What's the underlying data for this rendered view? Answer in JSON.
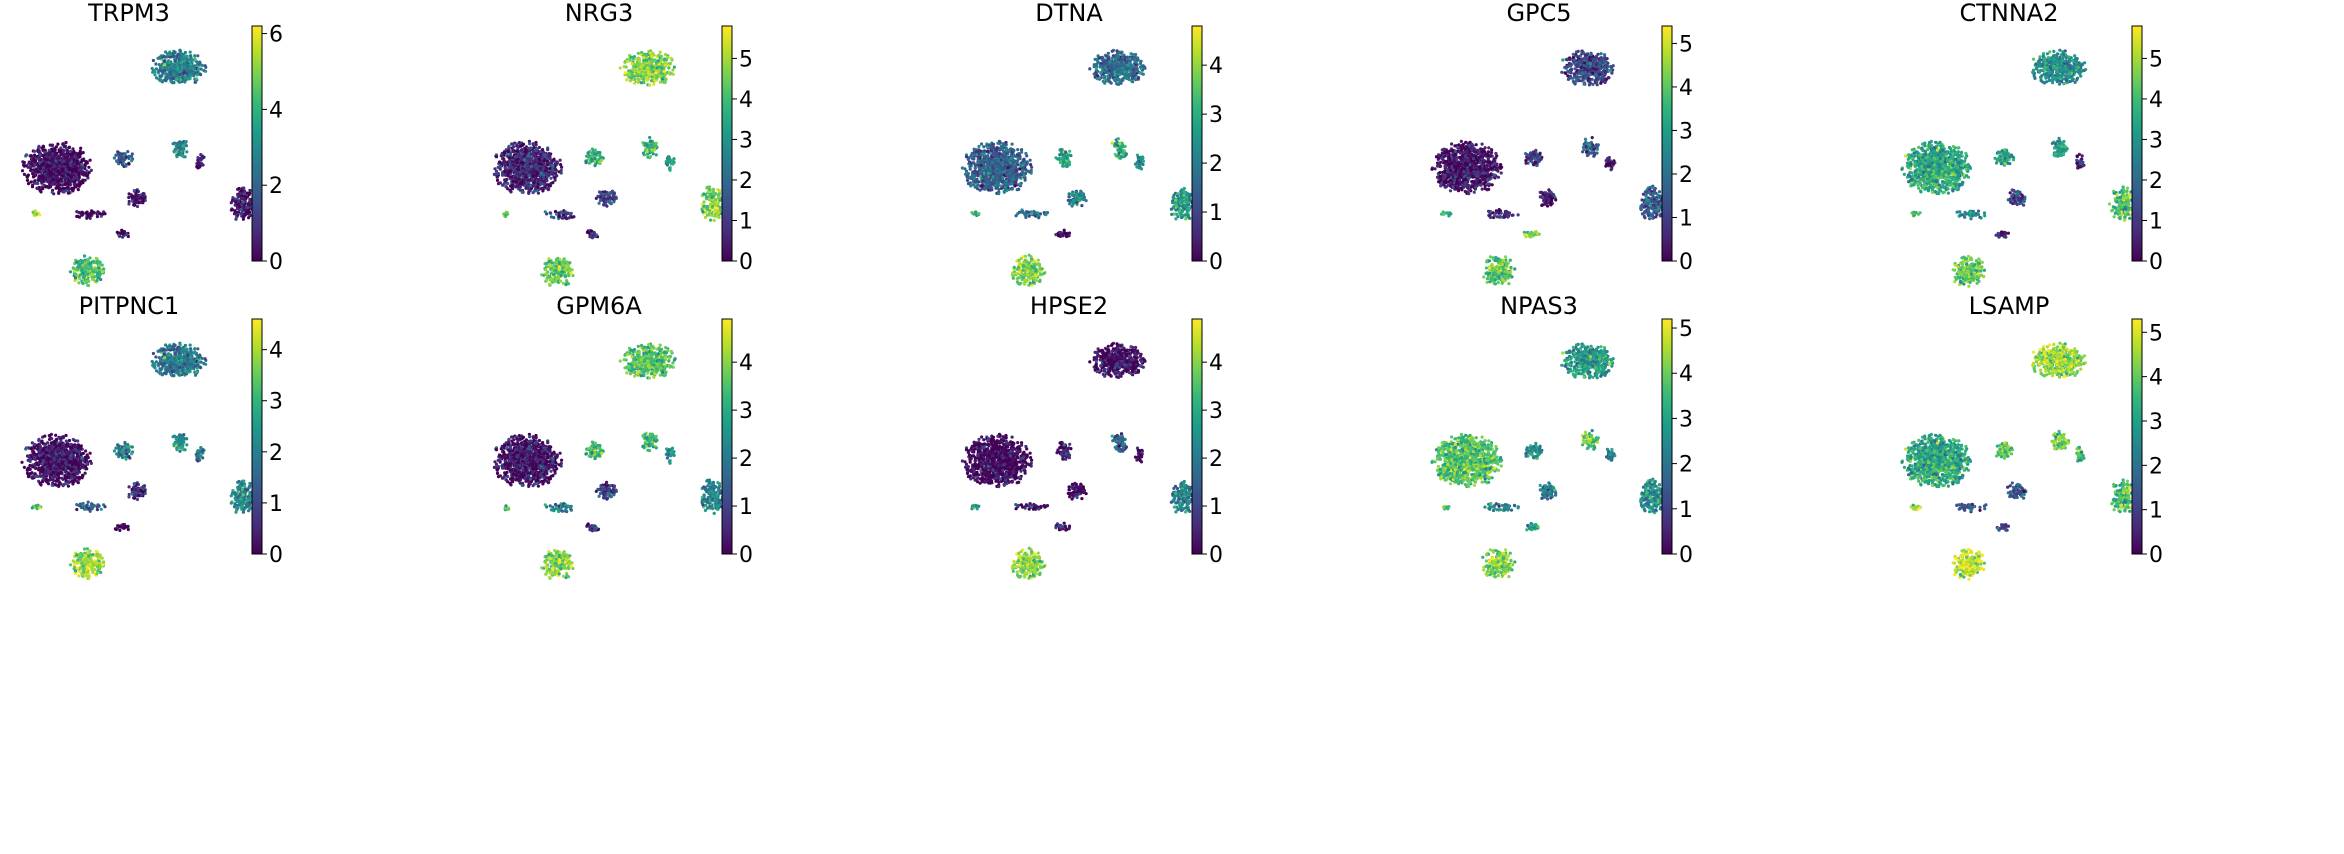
{
  "figure": {
    "type": "umap-feature-plot",
    "colormap": "viridis",
    "colormap_stops": [
      "#440154",
      "#482878",
      "#3e4989",
      "#31688e",
      "#26828e",
      "#1f9e89",
      "#35b779",
      "#6ece58",
      "#b5de2b",
      "#fde725"
    ]
  },
  "chart_data": [
    {
      "type": "scatter",
      "title": "TRPM3",
      "vmax": 6.2,
      "ticks": [
        0,
        2,
        4,
        6
      ],
      "tick_labels": [
        "0",
        "2",
        "4",
        "6"
      ],
      "cluster_expression": {
        "top": 0.45,
        "midleft": 0.02,
        "A": 0.3,
        "B": 0.45,
        "C": 0.05,
        "D": 0.05,
        "right": 0.04,
        "L1": 0.85,
        "L2": 0.05,
        "L3": 0.05,
        "bottom": 0.7
      }
    },
    {
      "type": "scatter",
      "title": "NRG3",
      "vmax": 5.8,
      "ticks": [
        0,
        1,
        2,
        3,
        4,
        5
      ],
      "tick_labels": [
        "0",
        "1",
        "2",
        "3",
        "4",
        "5"
      ],
      "cluster_expression": {
        "top": 0.8,
        "midleft": 0.12,
        "A": 0.6,
        "B": 0.7,
        "C": 0.2,
        "D": 0.55,
        "right": 0.78,
        "L1": 0.7,
        "L2": 0.15,
        "L3": 0.15,
        "bottom": 0.78
      }
    },
    {
      "type": "scatter",
      "title": "DTNA",
      "vmax": 4.8,
      "ticks": [
        0,
        1,
        2,
        3,
        4
      ],
      "tick_labels": [
        "0",
        "1",
        "2",
        "3",
        "4"
      ],
      "cluster_expression": {
        "top": 0.35,
        "midleft": 0.32,
        "A": 0.55,
        "B": 0.6,
        "C": 0.45,
        "D": 0.5,
        "right": 0.55,
        "L1": 0.6,
        "L2": 0.35,
        "L3": 0.05,
        "bottom": 0.8
      }
    },
    {
      "type": "scatter",
      "title": "GPC5",
      "vmax": 5.4,
      "ticks": [
        0,
        1,
        2,
        3,
        4,
        5
      ],
      "tick_labels": [
        "0",
        "1",
        "2",
        "3",
        "4",
        "5"
      ],
      "cluster_expression": {
        "top": 0.22,
        "midleft": 0.05,
        "A": 0.15,
        "B": 0.3,
        "C": 0.05,
        "D": 0.05,
        "right": 0.3,
        "L1": 0.65,
        "L2": 0.1,
        "L3": 0.85,
        "bottom": 0.75
      }
    },
    {
      "type": "scatter",
      "title": "CTNNA2",
      "vmax": 5.8,
      "ticks": [
        0,
        1,
        2,
        3,
        4,
        5
      ],
      "tick_labels": [
        "0",
        "1",
        "2",
        "3",
        "4",
        "5"
      ],
      "cluster_expression": {
        "top": 0.5,
        "midleft": 0.6,
        "A": 0.55,
        "B": 0.6,
        "C": 0.2,
        "D": 0.2,
        "right": 0.72,
        "L1": 0.75,
        "L2": 0.5,
        "L3": 0.1,
        "bottom": 0.75
      }
    },
    {
      "type": "scatter",
      "title": "PITPNC1",
      "vmax": 4.6,
      "ticks": [
        0,
        1,
        2,
        3,
        4
      ],
      "tick_labels": [
        "0",
        "1",
        "2",
        "3",
        "4"
      ],
      "cluster_expression": {
        "top": 0.42,
        "midleft": 0.04,
        "A": 0.45,
        "B": 0.5,
        "C": 0.12,
        "D": 0.4,
        "right": 0.45,
        "L1": 0.7,
        "L2": 0.3,
        "L3": 0.05,
        "bottom": 0.85
      }
    },
    {
      "type": "scatter",
      "title": "GPM6A",
      "vmax": 4.9,
      "ticks": [
        0,
        1,
        2,
        3,
        4
      ],
      "tick_labels": [
        "0",
        "1",
        "2",
        "3",
        "4"
      ],
      "cluster_expression": {
        "top": 0.72,
        "midleft": 0.06,
        "A": 0.65,
        "B": 0.7,
        "C": 0.2,
        "D": 0.5,
        "right": 0.45,
        "L1": 0.7,
        "L2": 0.35,
        "L3": 0.15,
        "bottom": 0.82
      }
    },
    {
      "type": "scatter",
      "title": "HPSE2",
      "vmax": 4.9,
      "ticks": [
        0,
        1,
        2,
        3,
        4
      ],
      "tick_labels": [
        "0",
        "1",
        "2",
        "3",
        "4"
      ],
      "cluster_expression": {
        "top": 0.04,
        "midleft": 0.02,
        "A": 0.05,
        "B": 0.3,
        "C": 0.03,
        "D": 0.02,
        "right": 0.45,
        "L1": 0.6,
        "L2": 0.05,
        "L3": 0.05,
        "bottom": 0.82
      }
    },
    {
      "type": "scatter",
      "title": "NPAS3",
      "vmax": 5.2,
      "ticks": [
        0,
        1,
        2,
        3,
        4,
        5
      ],
      "tick_labels": [
        "0",
        "1",
        "2",
        "3",
        "4",
        "5"
      ],
      "cluster_expression": {
        "top": 0.55,
        "midleft": 0.72,
        "A": 0.5,
        "B": 0.7,
        "C": 0.4,
        "D": 0.45,
        "right": 0.5,
        "L1": 0.8,
        "L2": 0.45,
        "L3": 0.6,
        "bottom": 0.82
      }
    },
    {
      "type": "scatter",
      "title": "LSAMP",
      "vmax": 5.3,
      "ticks": [
        0,
        1,
        2,
        3,
        4,
        5
      ],
      "tick_labels": [
        "0",
        "1",
        "2",
        "3",
        "4",
        "5"
      ],
      "cluster_expression": {
        "top": 0.85,
        "midleft": 0.6,
        "A": 0.75,
        "B": 0.8,
        "C": 0.3,
        "D": 0.72,
        "right": 0.72,
        "L1": 0.8,
        "L2": 0.3,
        "L3": 0.2,
        "bottom": 0.9
      }
    }
  ]
}
